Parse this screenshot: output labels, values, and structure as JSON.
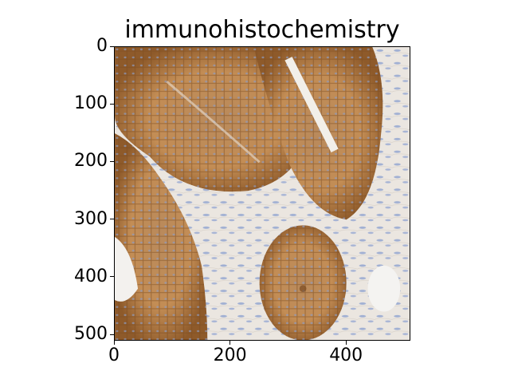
{
  "figure": {
    "title": "immunohistochemistry",
    "x_axis": {
      "range": [
        0,
        511
      ],
      "ticks": [
        0,
        200,
        400
      ],
      "tick_labels": [
        "0",
        "200",
        "400"
      ]
    },
    "y_axis": {
      "range": [
        0,
        511
      ],
      "inverted": true,
      "ticks": [
        0,
        100,
        200,
        300,
        400,
        500
      ],
      "tick_labels": [
        "0",
        "100",
        "200",
        "300",
        "400",
        "500"
      ]
    },
    "image": {
      "description_colors": {
        "background_stroma": "#ece9e4",
        "membrane_stain": "#8b5a2b",
        "cytoplasm_stain": "#c08a56",
        "nuclei_blue": "#8da0c8"
      }
    }
  }
}
